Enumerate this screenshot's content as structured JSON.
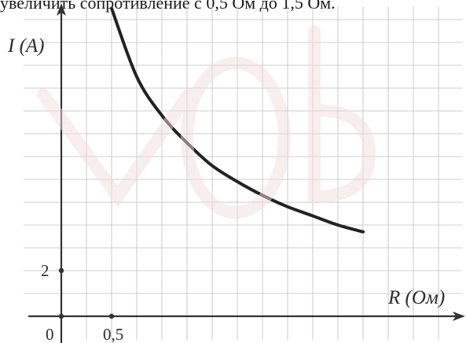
{
  "caption": {
    "text": "увеличить сопротивление с 0,5 Ом до 1,5 Ом."
  },
  "colors": {
    "grid": "#cfcfcf",
    "axis": "#333333",
    "curve": "#222222",
    "watermark": "#f3e6e6"
  },
  "chart_data": {
    "type": "line",
    "title": "",
    "xlabel": "R (Ом)",
    "ylabel": "I (А)",
    "x_ticks": [
      {
        "value": 0,
        "label": "0"
      },
      {
        "value": 0.5,
        "label": "0,5"
      }
    ],
    "y_ticks": [
      {
        "value": 2,
        "label": "2"
      }
    ],
    "xlim": [
      0,
      4.1
    ],
    "ylim": [
      0,
      13.6
    ],
    "grid": true,
    "grid_step_x": 0.25,
    "grid_step_y": 1,
    "series": [
      {
        "x": [
          0.5,
          0.75,
          1.0,
          1.25,
          1.5,
          1.75,
          2.0,
          2.25,
          2.5,
          2.75,
          3.0
        ],
        "y": [
          13.5,
          10.5,
          8.8,
          7.6,
          6.6,
          5.9,
          5.3,
          4.8,
          4.4,
          4.0,
          3.7
        ]
      }
    ]
  }
}
